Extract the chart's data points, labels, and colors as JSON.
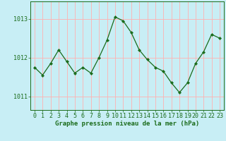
{
  "x": [
    0,
    1,
    2,
    3,
    4,
    5,
    6,
    7,
    8,
    9,
    10,
    11,
    12,
    13,
    14,
    15,
    16,
    17,
    18,
    19,
    20,
    21,
    22,
    23
  ],
  "y": [
    1011.75,
    1011.55,
    1011.85,
    1012.2,
    1011.9,
    1011.6,
    1011.75,
    1011.6,
    1012.0,
    1012.45,
    1013.05,
    1012.95,
    1012.65,
    1012.2,
    1011.95,
    1011.75,
    1011.65,
    1011.35,
    1011.1,
    1011.35,
    1011.85,
    1012.15,
    1012.6,
    1012.5
  ],
  "line_color": "#1a6b1a",
  "marker_color": "#1a6b1a",
  "bg_color": "#c8eef5",
  "grid_color": "#ffb0b0",
  "axis_label_color": "#1a6b1a",
  "tick_color": "#1a6b1a",
  "yticks": [
    1011,
    1012,
    1013
  ],
  "ylim": [
    1010.65,
    1013.45
  ],
  "xlim": [
    -0.5,
    23.5
  ],
  "xlabel": "Graphe pression niveau de la mer (hPa)",
  "xlabel_fontsize": 6.5,
  "tick_fontsize": 6.0
}
